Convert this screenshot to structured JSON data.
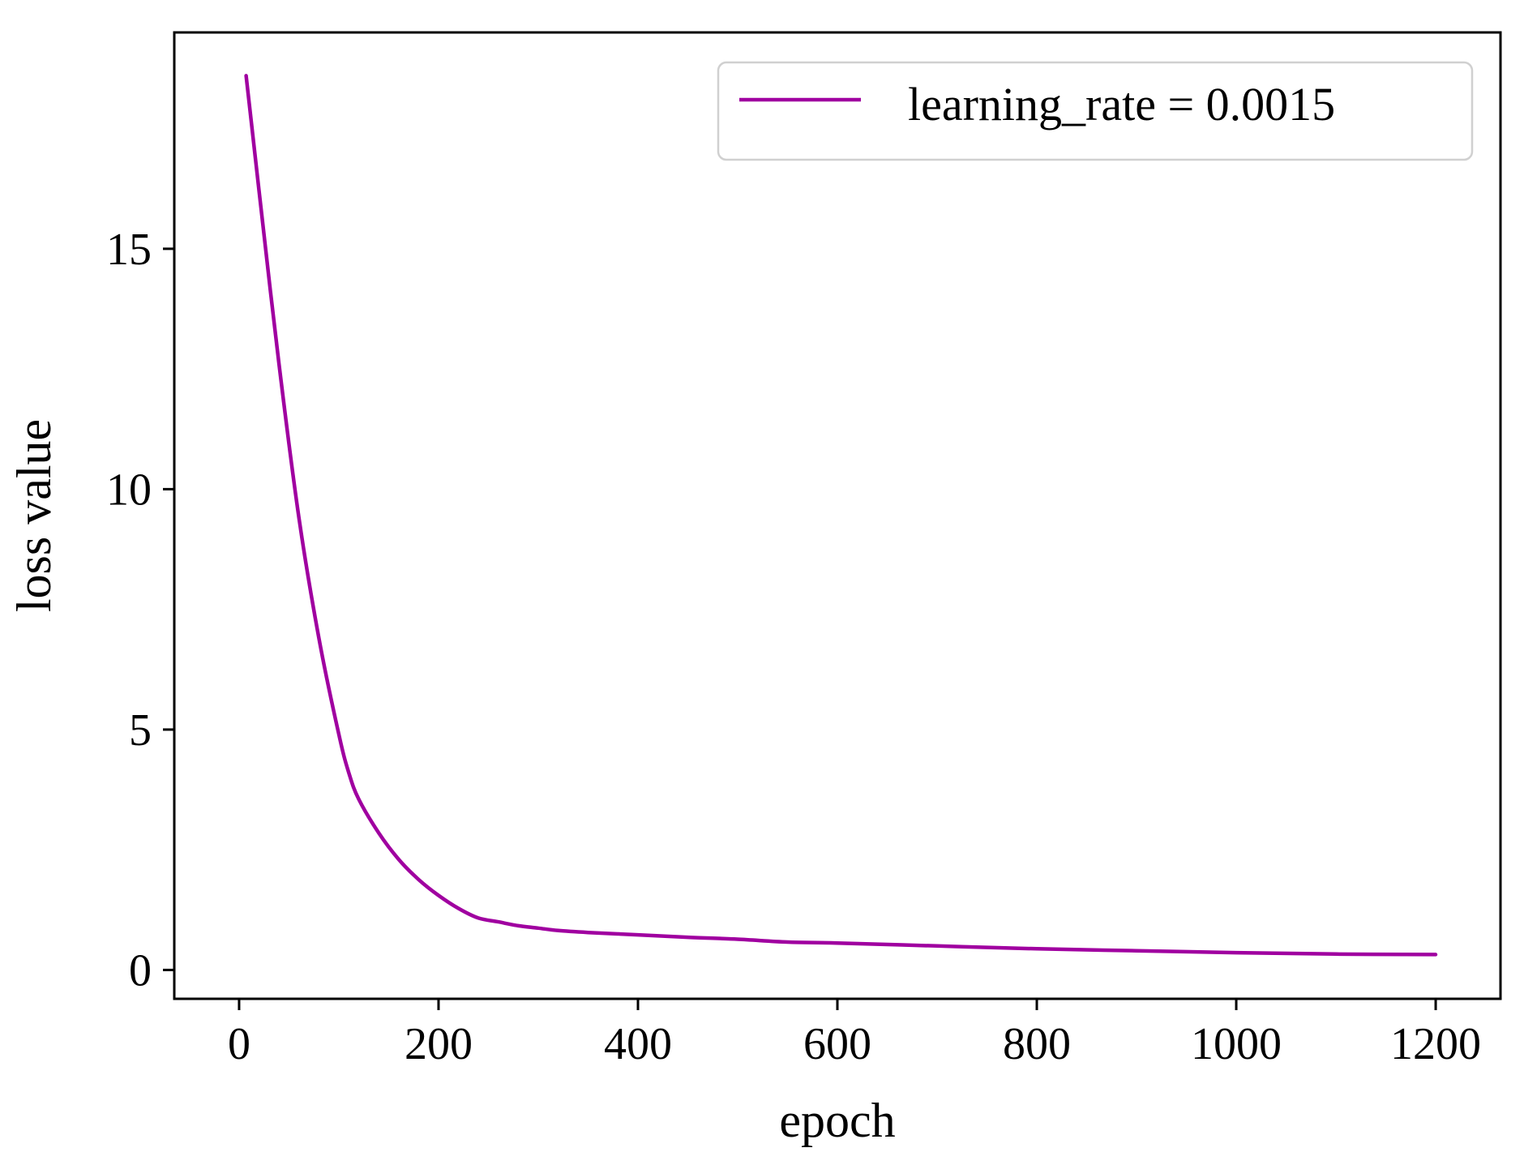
{
  "chart_data": {
    "type": "line",
    "title": "",
    "xlabel": "epoch",
    "ylabel": "loss value",
    "xlim": [
      -65,
      1265
    ],
    "ylim": [
      -0.6,
      19.5
    ],
    "xticks": [
      0,
      200,
      400,
      600,
      800,
      1000,
      1200
    ],
    "xtick_labels": [
      "0",
      "200",
      "400",
      "600",
      "800",
      "1000",
      "1200"
    ],
    "yticks": [
      0,
      5,
      10,
      15
    ],
    "ytick_labels": [
      "0",
      "5",
      "10",
      "15"
    ],
    "grid": false,
    "legend": {
      "placement": "top-right",
      "entries": [
        "learning_rate = 0.0015"
      ]
    },
    "series": [
      {
        "name": "learning_rate = 0.0015",
        "color": "#a000a0",
        "x": [
          7,
          20,
          40,
          60,
          80,
          100,
          110,
          120,
          140,
          160,
          180,
          200,
          220,
          240,
          260,
          280,
          300,
          320,
          350,
          400,
          450,
          500,
          550,
          600,
          700,
          800,
          900,
          1000,
          1100,
          1200
        ],
        "y": [
          18.6,
          16.2,
          12.6,
          9.4,
          6.9,
          4.9,
          4.1,
          3.55,
          2.85,
          2.3,
          1.88,
          1.55,
          1.28,
          1.08,
          1.0,
          0.92,
          0.87,
          0.82,
          0.78,
          0.73,
          0.68,
          0.64,
          0.58,
          0.56,
          0.5,
          0.44,
          0.4,
          0.36,
          0.33,
          0.32
        ]
      }
    ]
  }
}
